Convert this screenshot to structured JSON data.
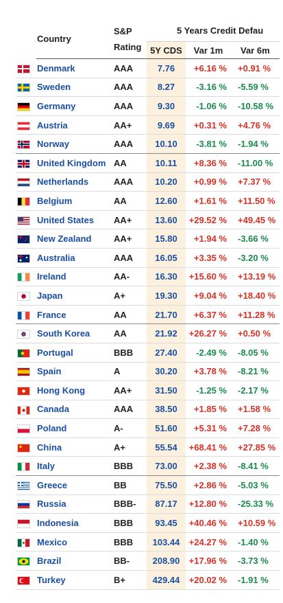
{
  "header": {
    "country": "Country",
    "rating_line1": "S&P",
    "rating_line2": "Rating",
    "group": "5 Years Credit Defau",
    "cds": "5Y CDS",
    "var1m": "Var 1m",
    "var6m": "Var 6m"
  },
  "colors": {
    "link": "#1a4fa3",
    "positive": "#d93025",
    "negative": "#1a8a4e",
    "highlight": "#fbf1de"
  },
  "rows": [
    {
      "flag": "denmark-flag-icon",
      "country": "Denmark",
      "rating": "AAA",
      "cds": "7.76",
      "var1m": "+6.16 %",
      "var6m": "+0.91 %"
    },
    {
      "flag": "sweden-flag-icon",
      "country": "Sweden",
      "rating": "AAA",
      "cds": "8.27",
      "var1m": "-3.16 %",
      "var6m": "-5.59 %"
    },
    {
      "flag": "germany-flag-icon",
      "country": "Germany",
      "rating": "AAA",
      "cds": "9.30",
      "var1m": "-1.06 %",
      "var6m": "-10.58 %"
    },
    {
      "flag": "austria-flag-icon",
      "country": "Austria",
      "rating": "AA+",
      "cds": "9.69",
      "var1m": "+0.31 %",
      "var6m": "+4.76 %"
    },
    {
      "flag": "norway-flag-icon",
      "country": "Norway",
      "rating": "AAA",
      "cds": "10.10",
      "var1m": "-3.81 %",
      "var6m": "-1.94 %"
    },
    {
      "flag": "uk-flag-icon",
      "country": "United Kingdom",
      "rating": "AA",
      "cds": "10.11",
      "var1m": "+8.36 %",
      "var6m": "-11.00 %"
    },
    {
      "flag": "netherlands-flag-icon",
      "country": "Netherlands",
      "rating": "AAA",
      "cds": "10.20",
      "var1m": "+0.99 %",
      "var6m": "+7.37 %"
    },
    {
      "flag": "belgium-flag-icon",
      "country": "Belgium",
      "rating": "AA",
      "cds": "12.60",
      "var1m": "+1.61 %",
      "var6m": "+11.50 %"
    },
    {
      "flag": "usa-flag-icon",
      "country": "United States",
      "rating": "AA+",
      "cds": "13.60",
      "var1m": "+29.52 %",
      "var6m": "+49.45 %"
    },
    {
      "flag": "new-zealand-flag-icon",
      "country": "New Zealand",
      "rating": "AA+",
      "cds": "15.80",
      "var1m": "+1.94 %",
      "var6m": "-3.66 %"
    },
    {
      "flag": "australia-flag-icon",
      "country": "Australia",
      "rating": "AAA",
      "cds": "16.05",
      "var1m": "+3.35 %",
      "var6m": "-3.20 %"
    },
    {
      "flag": "ireland-flag-icon",
      "country": "Ireland",
      "rating": "AA-",
      "cds": "16.30",
      "var1m": "+15.60 %",
      "var6m": "+13.19 %"
    },
    {
      "flag": "japan-flag-icon",
      "country": "Japan",
      "rating": "A+",
      "cds": "19.30",
      "var1m": "+9.04 %",
      "var6m": "+18.40 %"
    },
    {
      "flag": "france-flag-icon",
      "country": "France",
      "rating": "AA",
      "cds": "21.70",
      "var1m": "+6.37 %",
      "var6m": "+11.28 %"
    },
    {
      "flag": "south-korea-flag-icon",
      "country": "South Korea",
      "rating": "AA",
      "cds": "21.92",
      "var1m": "+26.27 %",
      "var6m": "+0.50 %"
    },
    {
      "flag": "portugal-flag-icon",
      "country": "Portugal",
      "rating": "BBB",
      "cds": "27.40",
      "var1m": "-2.49 %",
      "var6m": "-8.05 %"
    },
    {
      "flag": "spain-flag-icon",
      "country": "Spain",
      "rating": "A",
      "cds": "30.20",
      "var1m": "+3.78 %",
      "var6m": "-8.21 %"
    },
    {
      "flag": "hong-kong-flag-icon",
      "country": "Hong Kong",
      "rating": "AA+",
      "cds": "31.50",
      "var1m": "-1.25 %",
      "var6m": "-2.17 %"
    },
    {
      "flag": "canada-flag-icon",
      "country": "Canada",
      "rating": "AAA",
      "cds": "38.50",
      "var1m": "+1.85 %",
      "var6m": "+1.58 %"
    },
    {
      "flag": "poland-flag-icon",
      "country": "Poland",
      "rating": "A-",
      "cds": "51.60",
      "var1m": "+5.31 %",
      "var6m": "+7.28 %"
    },
    {
      "flag": "china-flag-icon",
      "country": "China",
      "rating": "A+",
      "cds": "55.54",
      "var1m": "+68.41 %",
      "var6m": "+27.85 %"
    },
    {
      "flag": "italy-flag-icon",
      "country": "Italy",
      "rating": "BBB",
      "cds": "73.00",
      "var1m": "+2.38 %",
      "var6m": "-8.41 %"
    },
    {
      "flag": "greece-flag-icon",
      "country": "Greece",
      "rating": "BB",
      "cds": "75.50",
      "var1m": "+2.86 %",
      "var6m": "-5.03 %"
    },
    {
      "flag": "russia-flag-icon",
      "country": "Russia",
      "rating": "BBB-",
      "cds": "87.17",
      "var1m": "+12.80 %",
      "var6m": "-25.33 %"
    },
    {
      "flag": "indonesia-flag-icon",
      "country": "Indonesia",
      "rating": "BBB",
      "cds": "93.45",
      "var1m": "+40.46 %",
      "var6m": "+10.59 %"
    },
    {
      "flag": "mexico-flag-icon",
      "country": "Mexico",
      "rating": "BBB",
      "cds": "103.44",
      "var1m": "+24.27 %",
      "var6m": "-1.40 %"
    },
    {
      "flag": "brazil-flag-icon",
      "country": "Brazil",
      "rating": "BB-",
      "cds": "208.90",
      "var1m": "+17.96 %",
      "var6m": "-3.73 %"
    },
    {
      "flag": "turkey-flag-icon",
      "country": "Turkey",
      "rating": "B+",
      "cds": "429.44",
      "var1m": "+20.02 %",
      "var6m": "-1.91 %"
    }
  ]
}
